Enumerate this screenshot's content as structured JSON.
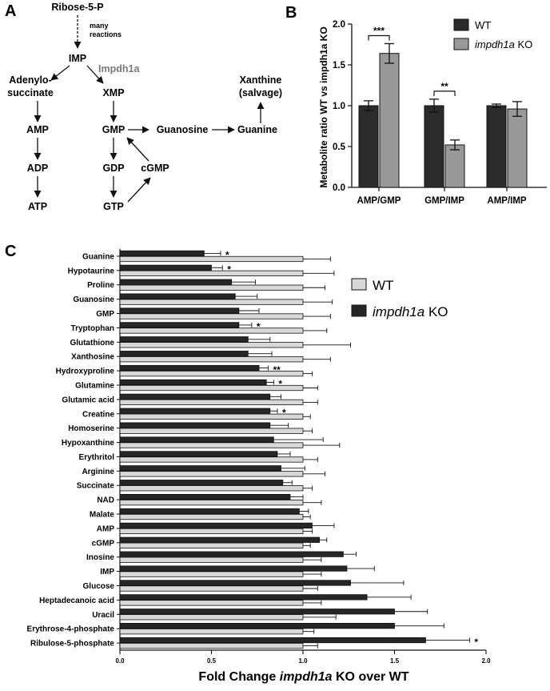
{
  "panels": {
    "a": "A",
    "b": "B",
    "c": "C"
  },
  "pathway": {
    "nodes": {
      "r5p": "Ribose-5-P",
      "many_reactions": [
        "many",
        "reactions"
      ],
      "imp": "IMP",
      "enzyme": "Impdh1a",
      "adenylo": [
        "Adenylo-",
        "succinate"
      ],
      "xmp": "XMP",
      "amp": "AMP",
      "adp": "ADP",
      "atp": "ATP",
      "gmp": "GMP",
      "gdp": "GDP",
      "gtp": "GTP",
      "cgmp": "cGMP",
      "guanosine": "Guanosine",
      "guanine": "Guanine",
      "xanthine": [
        "Xanthine",
        "(salvage)"
      ]
    }
  },
  "chart_data": [
    {
      "type": "bar",
      "panel": "B",
      "categories": [
        "AMP/GMP",
        "GMP/IMP",
        "AMP/IMP"
      ],
      "series": [
        {
          "name": "WT",
          "values": [
            1.0,
            1.0,
            1.0
          ],
          "errors": [
            0.06,
            0.08,
            0.02
          ],
          "color": "#2b2b2b"
        },
        {
          "name": "impdh1a KO",
          "values": [
            1.64,
            0.52,
            0.96
          ],
          "errors": [
            0.12,
            0.06,
            0.09
          ],
          "color": "#999999"
        }
      ],
      "ylabel": "Metabolite ratio WT vs  impdh1a KO",
      "ylim": [
        0,
        2.0
      ],
      "yticks": [
        "0.0",
        "0.5",
        "1.0",
        "1.5",
        "2.0"
      ],
      "significance": [
        {
          "category": "AMP/GMP",
          "label": "***"
        },
        {
          "category": "GMP/IMP",
          "label": "**"
        }
      ],
      "legend_position": "top-right",
      "legend": [
        {
          "prefix": "WT",
          "italic": "",
          "suffix": ""
        },
        {
          "prefix": "",
          "italic": "impdh1a",
          "suffix": " KO"
        }
      ]
    },
    {
      "type": "bar",
      "orientation": "horizontal",
      "panel": "C",
      "categories": [
        "Guanine",
        "Hypotaurine",
        "Proline",
        "Guanosine",
        "GMP",
        "Tryptophan",
        "Glutathione",
        "Xanthosine",
        "Hydroxyproline",
        "Glutamine",
        "Glutamic acid",
        "Creatine",
        "Homoserine",
        "Hypoxanthine",
        "Erythritol",
        "Arginine",
        "Succinate",
        "NAD",
        "Malate",
        "AMP",
        "cGMP",
        "Inosine",
        "IMP",
        "Glucose",
        "Heptadecanoic acid",
        "Uracil",
        "Erythrose-4-phosphate",
        "Ribulose-5-phosphate"
      ],
      "series": [
        {
          "name": "WT",
          "color": "#d8d8d8",
          "values": [
            1,
            1,
            1,
            1,
            1,
            1,
            1,
            1,
            1,
            1,
            1,
            1,
            1,
            1,
            1,
            1,
            1,
            1,
            1,
            1,
            1,
            1,
            1,
            1,
            1,
            1,
            1,
            1
          ],
          "errors": [
            0.15,
            0.17,
            0.12,
            0.16,
            0.15,
            0.13,
            0.26,
            0.15,
            0.05,
            0.08,
            0.08,
            0.04,
            0.05,
            0.2,
            0.08,
            0.12,
            0.05,
            0.1,
            0.04,
            0.05,
            0.04,
            0.1,
            0.1,
            0.08,
            0.1,
            0.18,
            0.06,
            0.08
          ]
        },
        {
          "name": "impdh1a KO",
          "color": "#262626",
          "values": [
            0.46,
            0.5,
            0.61,
            0.63,
            0.65,
            0.65,
            0.7,
            0.7,
            0.76,
            0.8,
            0.82,
            0.82,
            0.82,
            0.84,
            0.86,
            0.88,
            0.89,
            0.93,
            0.98,
            1.05,
            1.09,
            1.22,
            1.24,
            1.26,
            1.35,
            1.5,
            1.5,
            1.67
          ],
          "errors": [
            0.09,
            0.06,
            0.13,
            0.12,
            0.11,
            0.07,
            0.12,
            0.13,
            0.05,
            0.04,
            0.06,
            0.04,
            0.1,
            0.27,
            0.07,
            0.13,
            0.05,
            0.07,
            0.05,
            0.12,
            0.04,
            0.07,
            0.15,
            0.29,
            0.24,
            0.18,
            0.27,
            0.24
          ]
        }
      ],
      "significance": [
        "*",
        "*",
        "",
        "",
        "",
        "*",
        "",
        "",
        "**",
        "*",
        "",
        "*",
        "",
        "",
        "",
        "",
        "",
        "",
        "",
        "",
        "",
        "",
        "",
        "",
        "",
        "",
        "",
        "*"
      ],
      "xlabel": {
        "prefix": "Fold Change ",
        "italic": "impdh1a",
        "suffix": " KO over WT"
      },
      "xlim": [
        0,
        2.0
      ],
      "xticks": [
        "0.0",
        "0.5",
        "1.0",
        "1.5",
        "2.0"
      ],
      "legend_position": "right",
      "legend": [
        {
          "prefix": "WT",
          "italic": "",
          "suffix": ""
        },
        {
          "prefix": "",
          "italic": "impdh1a",
          "suffix": " KO"
        }
      ]
    }
  ]
}
